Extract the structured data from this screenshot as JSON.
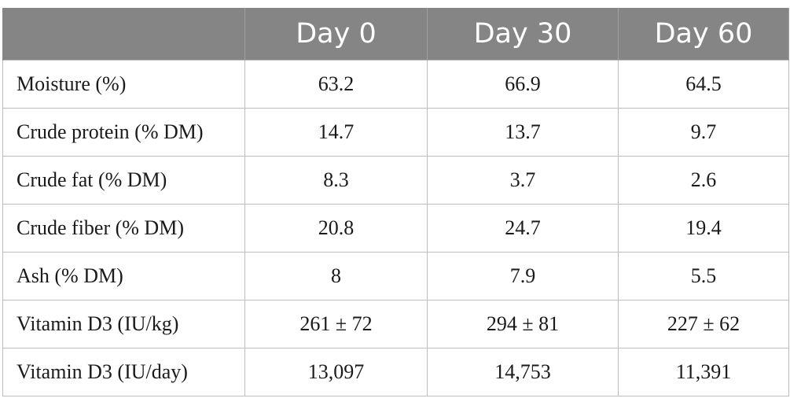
{
  "table": {
    "headers": [
      "",
      "Day 0",
      "Day 30",
      "Day 60"
    ],
    "rows": [
      {
        "label": "Moisture (%)",
        "values": [
          "63.2",
          "66.9",
          "64.5"
        ]
      },
      {
        "label": "Crude protein (% DM)",
        "values": [
          "14.7",
          "13.7",
          "9.7"
        ]
      },
      {
        "label": "Crude fat (% DM)",
        "values": [
          "8.3",
          "3.7",
          "2.6"
        ]
      },
      {
        "label": "Crude fiber (% DM)",
        "values": [
          "20.8",
          "24.7",
          "19.4"
        ]
      },
      {
        "label": "Ash (% DM)",
        "values": [
          "8",
          "7.9",
          "5.5"
        ]
      },
      {
        "label": "Vitamin D3 (IU/kg)",
        "values": [
          "261 ± 72",
          "294 ± 81",
          "227 ± 62"
        ]
      },
      {
        "label": "Vitamin D3 (IU/day)",
        "values": [
          "13,097",
          "14,753",
          "11,391"
        ]
      }
    ]
  }
}
